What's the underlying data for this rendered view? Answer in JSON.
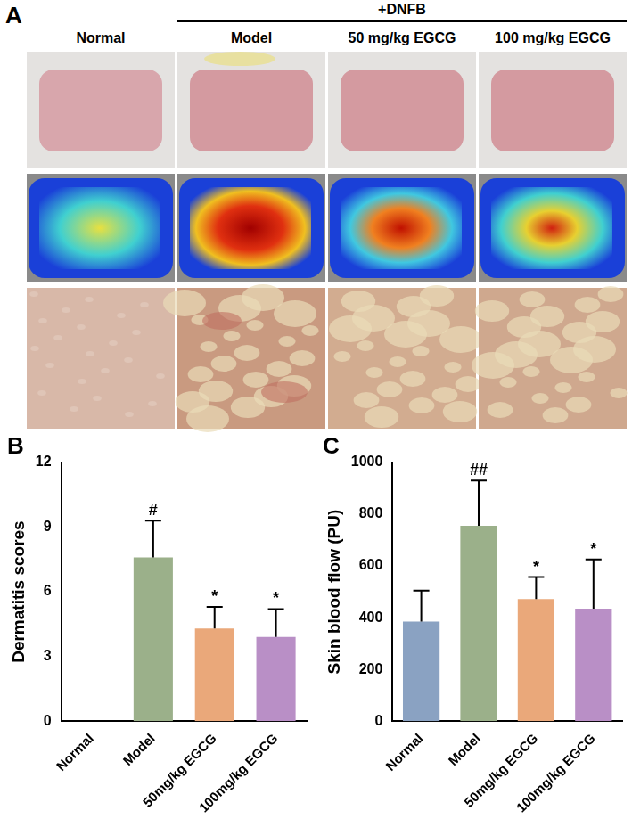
{
  "figure_panel_a": {
    "panel_label": "A",
    "header": "+DNFB",
    "columns": [
      "Normal",
      "Model",
      "50 mg/kg EGCG",
      "100 mg/kg EGCG"
    ]
  },
  "chart_data": [
    {
      "panel_label": "B",
      "type": "bar",
      "y_label": "Dermatitis scores",
      "categories": [
        "Normal",
        "Model",
        "50mg/kg EGCG",
        "100mg/kg EGCG"
      ],
      "values": [
        0,
        7.6,
        4.3,
        3.9
      ],
      "errors": [
        0,
        1.7,
        1.0,
        1.3
      ],
      "significance": [
        null,
        "#",
        "*",
        "*"
      ],
      "colors": [
        "#8aa2c2",
        "#9bb08a",
        "#eaa87a",
        "#b98fc6"
      ],
      "ylim": [
        0,
        12
      ],
      "yticks": [
        0,
        3,
        6,
        9,
        12
      ],
      "grid": false
    },
    {
      "panel_label": "C",
      "type": "bar",
      "y_label": "Skin blood flow (PU)",
      "categories": [
        "Normal",
        "Model",
        "50mg/kg EGCG",
        "100mg/kg EGCG"
      ],
      "values": [
        385,
        755,
        472,
        435
      ],
      "errors": [
        120,
        175,
        85,
        190
      ],
      "significance": [
        null,
        "##",
        "*",
        "*"
      ],
      "colors": [
        "#8aa2c2",
        "#9bb08a",
        "#eaa87a",
        "#b98fc6"
      ],
      "ylim": [
        0,
        1000
      ],
      "yticks": [
        0,
        200,
        400,
        600,
        800,
        1000
      ],
      "grid": false
    }
  ]
}
